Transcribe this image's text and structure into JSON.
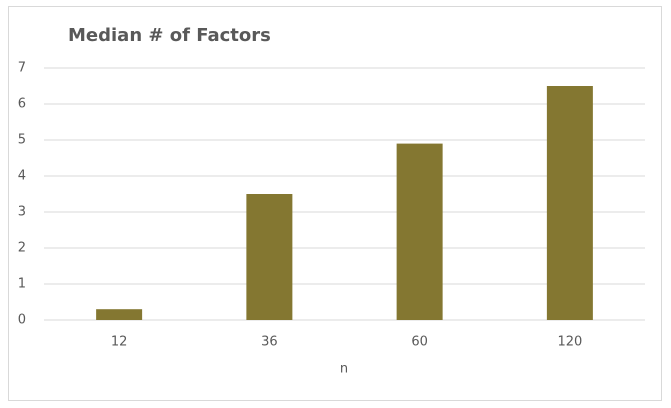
{
  "chart_data": {
    "type": "bar",
    "title": "Median # of Factors",
    "x_label": "n",
    "categories": [
      "12",
      "36",
      "60",
      "120"
    ],
    "values": [
      0.3,
      3.5,
      4.9,
      6.5
    ],
    "color": "#847731",
    "ylim": [
      0,
      7
    ],
    "yticks": [
      0,
      1,
      2,
      3,
      4,
      5,
      6,
      7
    ],
    "grid": true
  }
}
